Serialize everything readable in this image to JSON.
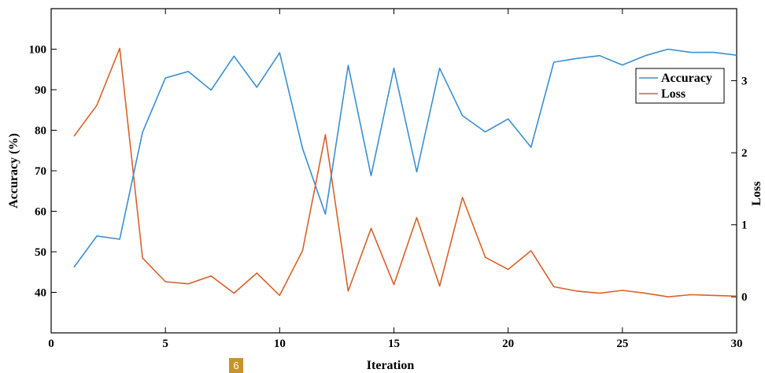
{
  "chart_data": {
    "type": "line",
    "xlabel": "Iteration",
    "ylabel_left": "Accuracy (%)",
    "ylabel_right": "Loss",
    "xlim": [
      0,
      30
    ],
    "ylim_left": [
      30,
      110
    ],
    "ylim_right": [
      -0.5,
      4.0
    ],
    "x_ticks": [
      "0",
      "5",
      "10",
      "15",
      "20",
      "25",
      "30"
    ],
    "y_left_ticks": [
      "40",
      "50",
      "60",
      "70",
      "80",
      "90",
      "100"
    ],
    "y_right_ticks": [
      "0",
      "1",
      "2",
      "3"
    ],
    "legend_position": "top-right",
    "grid": false,
    "x": [
      1,
      2,
      3,
      4,
      5,
      6,
      7,
      8,
      9,
      10,
      11,
      12,
      13,
      14,
      15,
      16,
      17,
      18,
      19,
      20,
      21,
      22,
      23,
      24,
      25,
      26,
      27,
      28,
      29,
      30
    ],
    "series": [
      {
        "name": "Accuracy",
        "axis": "left",
        "color": "#3a8fd0",
        "values": [
          46.2,
          53.9,
          53.1,
          79.5,
          92.9,
          94.5,
          89.9,
          98.3,
          90.6,
          99.1,
          75.5,
          59.3,
          96.0,
          68.8,
          95.3,
          69.7,
          95.3,
          83.6,
          79.6,
          82.8,
          75.8,
          96.8,
          97.7,
          98.4,
          96.1,
          98.4,
          100.0,
          99.2,
          99.2,
          98.5
        ]
      },
      {
        "name": "Loss",
        "axis": "right",
        "color": "#d9612a",
        "values": [
          2.23,
          2.66,
          3.45,
          0.54,
          0.21,
          0.18,
          0.29,
          0.05,
          0.33,
          0.02,
          0.64,
          2.25,
          0.08,
          0.95,
          0.17,
          1.1,
          0.15,
          1.38,
          0.55,
          0.38,
          0.64,
          0.14,
          0.08,
          0.05,
          0.09,
          0.05,
          0.0,
          0.03,
          0.02,
          0.01
        ]
      }
    ]
  },
  "badge": {
    "label": "6",
    "color": "#c8932a"
  }
}
